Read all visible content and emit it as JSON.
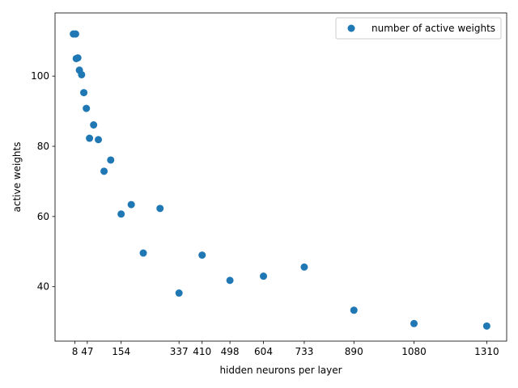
{
  "chart_data": {
    "type": "scatter",
    "xlabel": "hidden neurons per layer",
    "ylabel": "active weights",
    "xlim": [
      -55,
      1373
    ],
    "ylim": [
      24.5,
      118
    ],
    "x_ticks": [
      8,
      47,
      154,
      337,
      410,
      498,
      604,
      733,
      890,
      1080,
      1310
    ],
    "y_ticks": [
      40,
      60,
      80,
      100
    ],
    "legend": {
      "position": "top-right"
    },
    "series": [
      {
        "name": "number of active weights",
        "color": "#1f77b4",
        "points": [
          [
            3,
            112
          ],
          [
            10,
            112
          ],
          [
            12,
            105
          ],
          [
            17,
            105.2
          ],
          [
            22,
            101.7
          ],
          [
            29,
            100.4
          ],
          [
            36,
            95.3
          ],
          [
            44,
            90.8
          ],
          [
            54,
            82.3
          ],
          [
            67,
            86.1
          ],
          [
            82,
            81.9
          ],
          [
            100,
            72.9
          ],
          [
            121,
            76.1
          ],
          [
            154,
            60.7
          ],
          [
            186,
            63.4
          ],
          [
            224,
            49.6
          ],
          [
            277,
            62.3
          ],
          [
            337,
            38.2
          ],
          [
            410,
            49
          ],
          [
            498,
            41.8
          ],
          [
            604,
            43
          ],
          [
            733,
            45.6
          ],
          [
            890,
            33.3
          ],
          [
            1080,
            29.5
          ],
          [
            1310,
            28.8
          ]
        ]
      }
    ]
  }
}
